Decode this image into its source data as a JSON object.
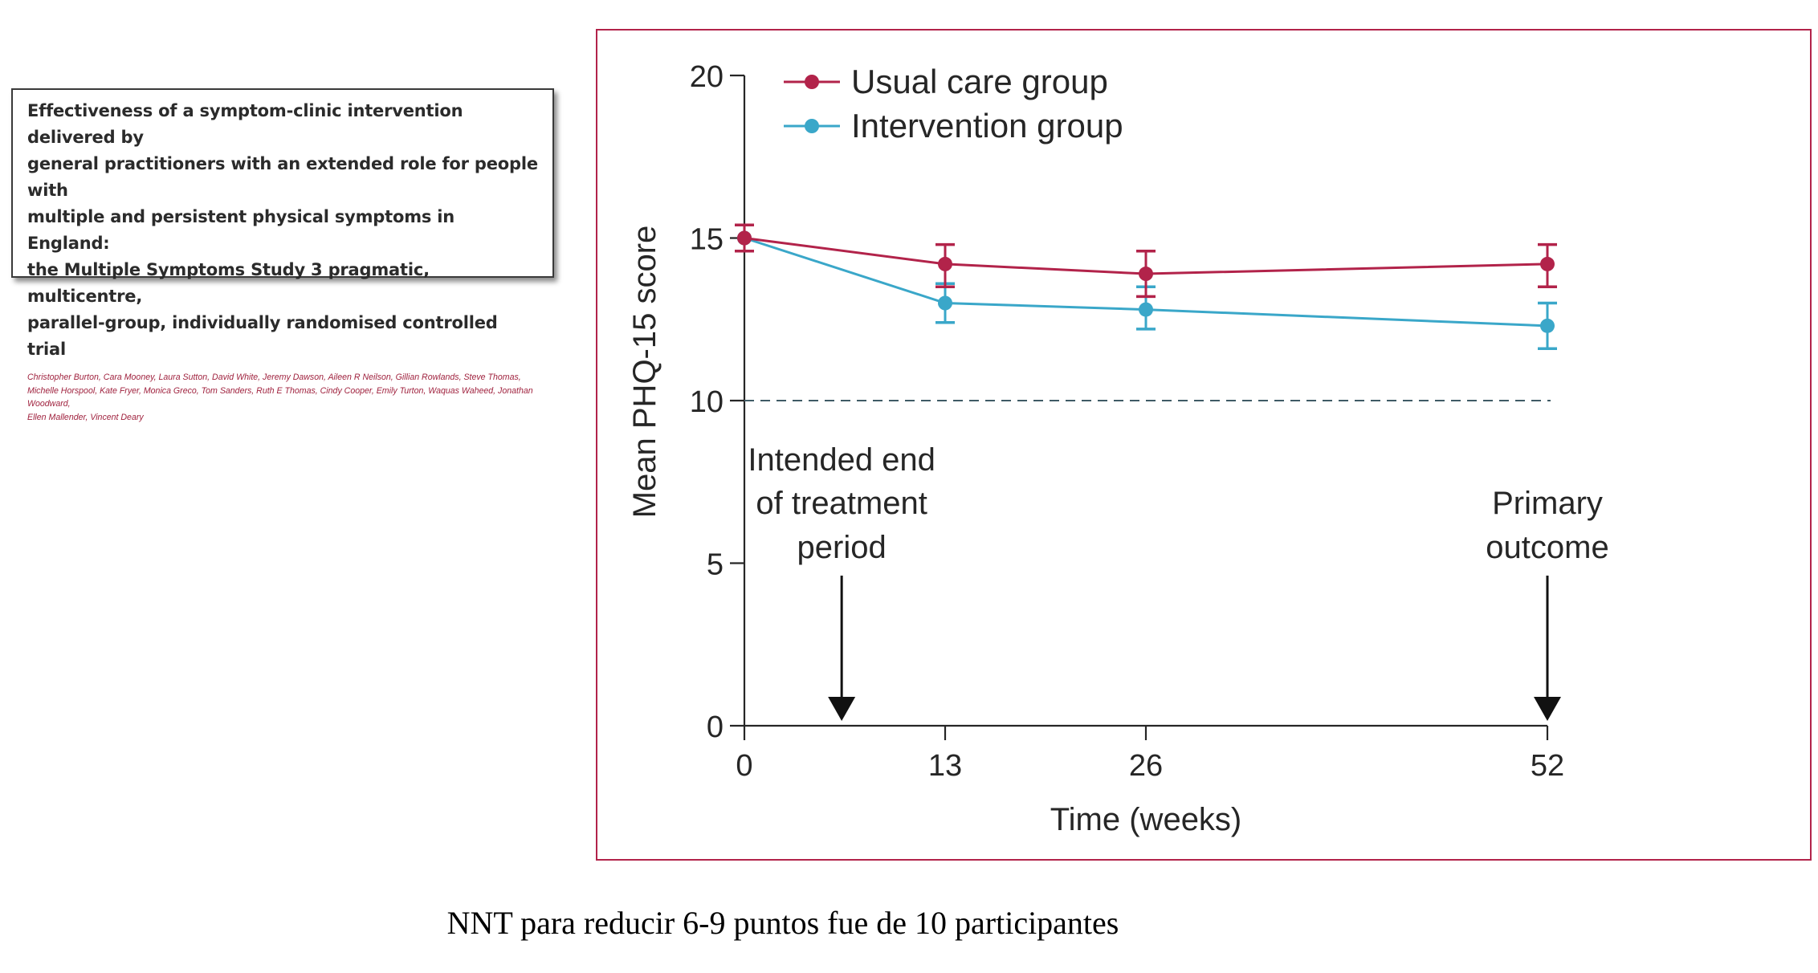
{
  "paper": {
    "title": "Effectiveness of a symptom-clinic intervention delivered by\ngeneral practitioners with an extended role for people with\nmultiple and persistent physical symptoms in England:\nthe Multiple Symptoms Study 3 pragmatic, multicentre,\nparallel-group, individually randomised controlled trial",
    "authors": "Christopher Burton, Cara Mooney, Laura Sutton, David White, Jeremy Dawson, Aileen R Neilson, Gillian Rowlands, Steve Thomas,\nMichelle Horspool, Kate Fryer, Monica Greco, Tom Sanders, Ruth E Thomas, Cindy Cooper, Emily Turton, Waquas Waheed, Jonathan Woodward,\nEllen Mallender, Vincent Deary"
  },
  "chart_data": {
    "type": "line",
    "xlabel": "Time (weeks)",
    "ylabel": "Mean PHQ-15 score",
    "x": [
      0,
      13,
      26,
      52
    ],
    "xticks": [
      "0",
      "13",
      "26",
      "52"
    ],
    "yticks": [
      "0",
      "5",
      "10",
      "15",
      "20"
    ],
    "ylim": [
      0,
      20
    ],
    "xlim": [
      0,
      52
    ],
    "reference_line": {
      "y": 10,
      "style": "dashed"
    },
    "series": [
      {
        "name": "Usual care group",
        "color": "#b2234a",
        "values": [
          15.0,
          14.2,
          13.9,
          14.2
        ],
        "err_low": [
          14.6,
          13.5,
          13.2,
          13.5
        ],
        "err_high": [
          15.4,
          14.8,
          14.6,
          14.8
        ]
      },
      {
        "name": "Intervention group",
        "color": "#3aa7c9",
        "values": [
          15.0,
          13.0,
          12.8,
          12.3
        ],
        "err_low": [
          14.6,
          12.4,
          12.2,
          11.6
        ],
        "err_high": [
          15.4,
          13.6,
          13.5,
          13.0
        ]
      }
    ],
    "annotations": [
      {
        "text": [
          "Intended end",
          "of treatment",
          "period"
        ],
        "x": 6.3
      },
      {
        "text": [
          "Primary",
          "outcome"
        ],
        "x": 52
      }
    ],
    "legend_position": "top-left",
    "grid": false
  },
  "footer": {
    "note": "NNT para reducir 6-9 puntos fue de 10 participantes"
  }
}
